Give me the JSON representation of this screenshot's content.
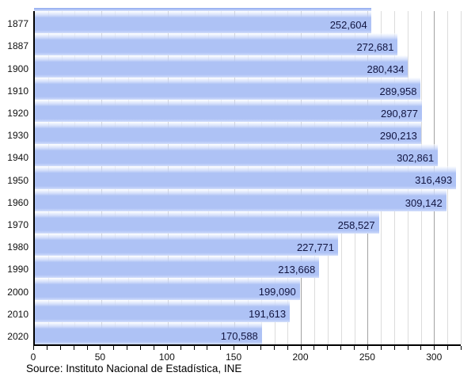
{
  "chart_data": {
    "type": "bar",
    "orientation": "horizontal",
    "title": "",
    "xlabel": "",
    "ylabel": "",
    "categories": [
      "1877",
      "1887",
      "1900",
      "1910",
      "1920",
      "1930",
      "1940",
      "1950",
      "1960",
      "1970",
      "1980",
      "1990",
      "2000",
      "2010",
      "2020"
    ],
    "values": [
      252604,
      272681,
      280434,
      289958,
      290877,
      290213,
      302861,
      316493,
      309142,
      258527,
      227771,
      213668,
      199090,
      191613,
      170588
    ],
    "value_labels": [
      "252,604",
      "272,681",
      "280,434",
      "289,958",
      "290,877",
      "290,213",
      "302,861",
      "316,493",
      "309,142",
      "258,527",
      "227,771",
      "213,668",
      "199,090",
      "191,613",
      "170,588"
    ],
    "xlim": [
      0,
      320000
    ],
    "x_tick_values": [
      0,
      50000,
      100000,
      150000,
      200000,
      250000,
      300000
    ],
    "x_tick_labels": [
      "0",
      "50",
      "100",
      "150",
      "200",
      "250",
      "300"
    ],
    "minor_tick_step": 10000,
    "major_tick_step": 50000,
    "grid": true,
    "legend": "none",
    "source_label": "Source: Instituto Nacional de Estadística, INE",
    "colors": {
      "bar": "#aec2f5",
      "bar_gloss": "#ffffff",
      "value_text": "#121540",
      "grid_minor": "#dcdcdc",
      "grid_major": "#a2a2a2",
      "axis": "#000000",
      "label_text": "#111111"
    }
  }
}
